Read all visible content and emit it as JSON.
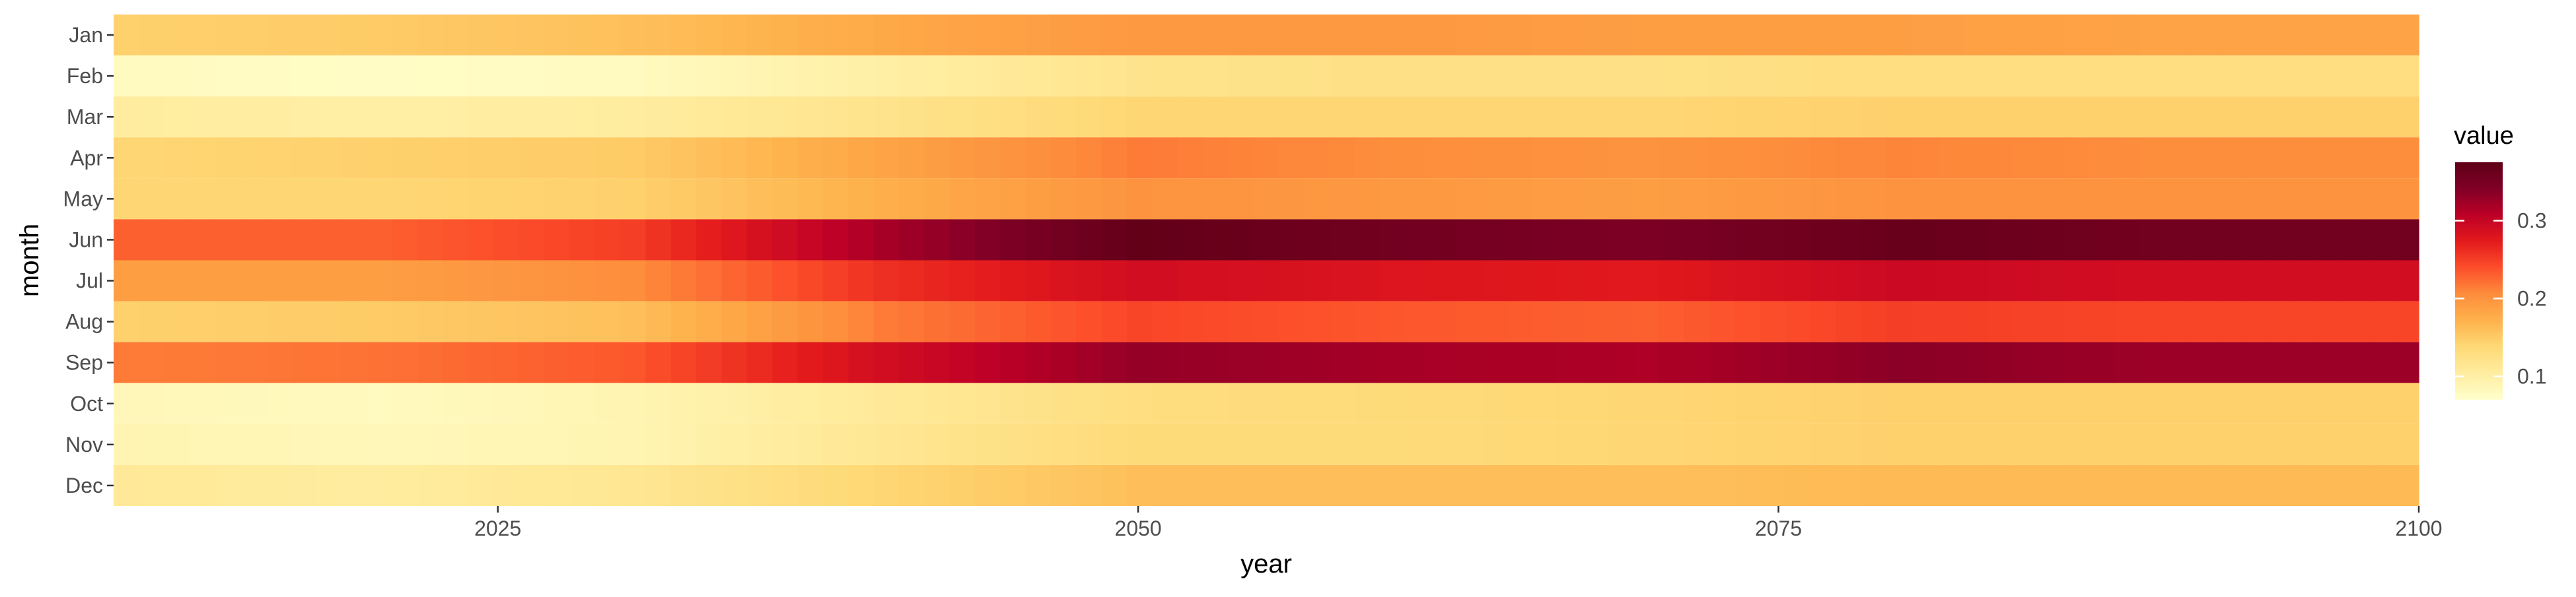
{
  "chart_data": {
    "type": "heatmap",
    "title": "",
    "xlabel": "year",
    "ylabel": "month",
    "x_range": [
      2010,
      2100
    ],
    "x_ticks": [
      2025,
      2050,
      2075,
      2100
    ],
    "x_tick_labels": [
      "2025",
      "2050",
      "2075",
      "2100"
    ],
    "y_categories": [
      "Jan",
      "Feb",
      "Mar",
      "Apr",
      "May",
      "Jun",
      "Jul",
      "Aug",
      "Sep",
      "Oct",
      "Nov",
      "Dec"
    ],
    "legend": {
      "title": "value",
      "ticks": [
        0.1,
        0.2,
        0.3
      ],
      "tick_labels": [
        "0.1",
        "0.2",
        "0.3"
      ],
      "min": 0.07,
      "max": 0.375,
      "position": "right"
    },
    "color_scale": [
      "#ffffcc",
      "#ffeda0",
      "#fed976",
      "#feb24c",
      "#fd8d3c",
      "#fc4e2a",
      "#e31a1c",
      "#bd0026",
      "#800026",
      "#5e0016"
    ],
    "grid": false,
    "series": [
      {
        "name": "Jan",
        "years": [
          2010,
          2020,
          2030,
          2040,
          2050,
          2060,
          2070,
          2080,
          2090,
          2100
        ],
        "values": [
          0.145,
          0.15,
          0.16,
          0.18,
          0.195,
          0.195,
          0.19,
          0.19,
          0.185,
          0.185
        ]
      },
      {
        "name": "Feb",
        "years": [
          2010,
          2020,
          2030,
          2040,
          2050,
          2060,
          2070,
          2080,
          2090,
          2100
        ],
        "values": [
          0.08,
          0.075,
          0.08,
          0.1,
          0.12,
          0.125,
          0.125,
          0.13,
          0.13,
          0.13
        ]
      },
      {
        "name": "Mar",
        "years": [
          2010,
          2020,
          2030,
          2040,
          2050,
          2060,
          2070,
          2080,
          2090,
          2100
        ],
        "values": [
          0.105,
          0.1,
          0.105,
          0.12,
          0.14,
          0.14,
          0.14,
          0.145,
          0.145,
          0.145
        ]
      },
      {
        "name": "Apr",
        "years": [
          2010,
          2020,
          2030,
          2040,
          2050,
          2060,
          2070,
          2080,
          2090,
          2100
        ],
        "values": [
          0.14,
          0.145,
          0.15,
          0.185,
          0.215,
          0.205,
          0.2,
          0.21,
          0.205,
          0.205
        ]
      },
      {
        "name": "May",
        "years": [
          2010,
          2020,
          2030,
          2040,
          2050,
          2060,
          2070,
          2080,
          2090,
          2100
        ],
        "values": [
          0.14,
          0.14,
          0.145,
          0.175,
          0.2,
          0.195,
          0.19,
          0.2,
          0.2,
          0.2
        ]
      },
      {
        "name": "Jun",
        "years": [
          2010,
          2020,
          2030,
          2040,
          2050,
          2060,
          2070,
          2080,
          2090,
          2100
        ],
        "values": [
          0.23,
          0.23,
          0.25,
          0.32,
          0.37,
          0.355,
          0.345,
          0.365,
          0.355,
          0.355
        ]
      },
      {
        "name": "Jul",
        "years": [
          2010,
          2020,
          2030,
          2040,
          2050,
          2060,
          2070,
          2080,
          2090,
          2100
        ],
        "values": [
          0.19,
          0.19,
          0.205,
          0.26,
          0.29,
          0.28,
          0.275,
          0.295,
          0.29,
          0.29
        ]
      },
      {
        "name": "Aug",
        "years": [
          2010,
          2020,
          2030,
          2040,
          2050,
          2060,
          2070,
          2080,
          2090,
          2100
        ],
        "values": [
          0.145,
          0.15,
          0.16,
          0.215,
          0.245,
          0.235,
          0.23,
          0.25,
          0.245,
          0.245
        ]
      },
      {
        "name": "Sep",
        "years": [
          2010,
          2020,
          2030,
          2040,
          2050,
          2060,
          2070,
          2080,
          2090,
          2100
        ],
        "values": [
          0.215,
          0.22,
          0.235,
          0.29,
          0.33,
          0.32,
          0.315,
          0.335,
          0.325,
          0.325
        ]
      },
      {
        "name": "Oct",
        "years": [
          2010,
          2020,
          2030,
          2040,
          2050,
          2060,
          2070,
          2080,
          2090,
          2100
        ],
        "values": [
          0.085,
          0.08,
          0.09,
          0.11,
          0.13,
          0.135,
          0.14,
          0.145,
          0.145,
          0.145
        ]
      },
      {
        "name": "Nov",
        "years": [
          2010,
          2020,
          2030,
          2040,
          2050,
          2060,
          2070,
          2080,
          2090,
          2100
        ],
        "values": [
          0.09,
          0.085,
          0.09,
          0.115,
          0.135,
          0.135,
          0.14,
          0.145,
          0.145,
          0.145
        ]
      },
      {
        "name": "Dec",
        "years": [
          2010,
          2020,
          2030,
          2040,
          2050,
          2060,
          2070,
          2080,
          2090,
          2100
        ],
        "values": [
          0.11,
          0.105,
          0.115,
          0.14,
          0.16,
          0.16,
          0.16,
          0.165,
          0.165,
          0.165
        ]
      }
    ]
  }
}
